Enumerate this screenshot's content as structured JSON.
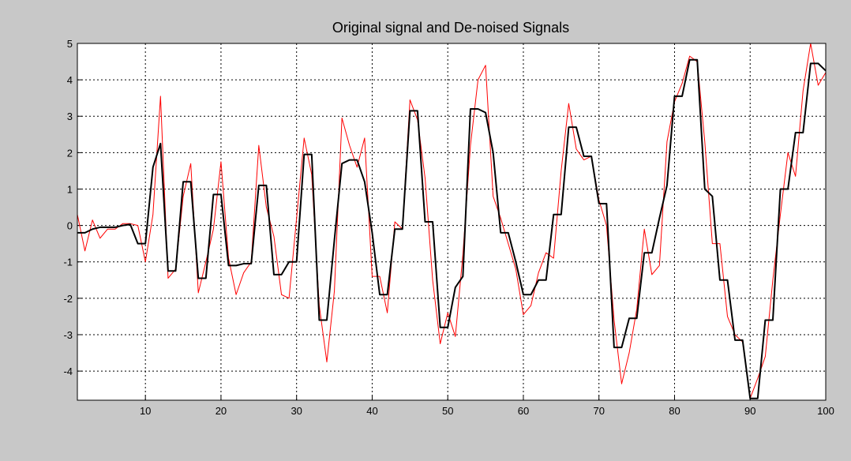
{
  "chart_data": {
    "type": "line",
    "title": "Original signal and De-noised Signals",
    "x": [
      1,
      2,
      3,
      4,
      5,
      6,
      7,
      8,
      9,
      10,
      11,
      12,
      13,
      14,
      15,
      16,
      17,
      18,
      19,
      20,
      21,
      22,
      23,
      24,
      25,
      26,
      27,
      28,
      29,
      30,
      31,
      32,
      33,
      34,
      35,
      36,
      37,
      38,
      39,
      40,
      41,
      42,
      43,
      44,
      45,
      46,
      47,
      48,
      49,
      50,
      51,
      52,
      53,
      54,
      55,
      56,
      57,
      58,
      59,
      60,
      61,
      62,
      63,
      64,
      65,
      66,
      67,
      68,
      69,
      70,
      71,
      72,
      73,
      74,
      75,
      76,
      77,
      78,
      79,
      80,
      81,
      82,
      83,
      84,
      85,
      86,
      87,
      88,
      89,
      90,
      91,
      92,
      93,
      94,
      95,
      96,
      97,
      98,
      99,
      100
    ],
    "series": [
      {
        "color": "#ff0000",
        "width": 1,
        "values": [
          0.3,
          -0.7,
          0.15,
          -0.35,
          -0.1,
          -0.1,
          0.05,
          0.05,
          0.0,
          -1.0,
          0.3,
          3.55,
          -1.45,
          -1.2,
          0.8,
          1.7,
          -1.85,
          -1.0,
          -0.1,
          1.75,
          -0.9,
          -1.9,
          -1.3,
          -1.0,
          2.2,
          0.5,
          -0.3,
          -1.9,
          -2.0,
          0.2,
          2.4,
          1.4,
          -2.2,
          -3.75,
          -1.8,
          2.95,
          2.2,
          1.6,
          2.4,
          -1.4,
          -1.4,
          -2.4,
          0.1,
          -0.1,
          3.45,
          2.9,
          1.3,
          -1.5,
          -3.25,
          -2.4,
          -3.05,
          -0.8,
          2.2,
          4.0,
          4.4,
          0.8,
          0.2,
          -0.5,
          -1.2,
          -2.45,
          -2.2,
          -1.3,
          -0.75,
          -0.9,
          1.5,
          3.35,
          2.1,
          1.8,
          1.9,
          0.7,
          0.0,
          -2.6,
          -4.35,
          -3.5,
          -2.3,
          -0.1,
          -1.35,
          -1.1,
          2.3,
          3.4,
          3.9,
          4.65,
          4.5,
          2.3,
          -0.5,
          -0.5,
          -2.5,
          -3.0,
          -3.2,
          -4.75,
          -4.2,
          -3.6,
          -1.5,
          0.3,
          2.0,
          1.35,
          3.7,
          5.0,
          3.85,
          4.2
        ]
      },
      {
        "color": "#000000",
        "width": 2,
        "values": [
          -0.2,
          -0.2,
          -0.1,
          -0.05,
          -0.05,
          -0.05,
          0.0,
          0.03,
          -0.5,
          -0.5,
          1.6,
          2.25,
          -1.25,
          -1.25,
          1.2,
          1.2,
          -1.45,
          -1.45,
          0.85,
          0.85,
          -1.1,
          -1.1,
          -1.05,
          -1.05,
          1.1,
          1.1,
          -1.35,
          -1.35,
          -1.0,
          -1.0,
          1.95,
          1.95,
          -2.6,
          -2.6,
          -0.4,
          1.7,
          1.8,
          1.8,
          1.2,
          -0.2,
          -1.9,
          -1.9,
          -0.1,
          -0.1,
          3.15,
          3.15,
          0.1,
          0.1,
          -2.8,
          -2.8,
          -1.7,
          -1.4,
          3.2,
          3.2,
          3.1,
          2.0,
          -0.2,
          -0.2,
          -1.0,
          -1.9,
          -1.9,
          -1.5,
          -1.5,
          0.3,
          0.3,
          2.7,
          2.7,
          1.9,
          1.9,
          0.6,
          0.6,
          -3.35,
          -3.35,
          -2.55,
          -2.55,
          -0.75,
          -0.75,
          0.2,
          1.1,
          3.55,
          3.55,
          4.55,
          4.55,
          1.0,
          0.8,
          -1.5,
          -1.5,
          -3.15,
          -3.15,
          -4.75,
          -4.75,
          -2.6,
          -2.6,
          1.0,
          1.0,
          2.55,
          2.55,
          4.45,
          4.45,
          4.25
        ]
      }
    ],
    "xlim": [
      1,
      100
    ],
    "ylim": [
      -4.8,
      5
    ],
    "xticks": [
      10,
      20,
      30,
      40,
      50,
      60,
      70,
      80,
      90,
      100
    ],
    "yticks": [
      -4,
      -3,
      -2,
      -1,
      0,
      1,
      2,
      3,
      4,
      5
    ],
    "grid": true
  }
}
